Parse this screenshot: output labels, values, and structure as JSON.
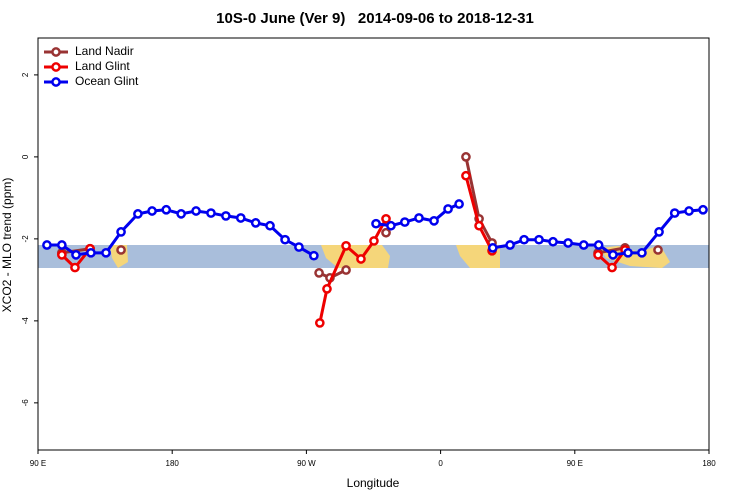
{
  "chart_data": {
    "type": "line",
    "title": "10S-0 June (Ver 9)   2014-09-06 to 2018-12-31",
    "xlabel": "Longitude",
    "ylabel": "XCO2 - MLO trend (ppm)",
    "xlim": [
      90,
      540
    ],
    "ylim": [
      -7.15,
      2.9
    ],
    "xticks": [
      {
        "value": 90,
        "label": "90 E"
      },
      180,
      {
        "value": 270,
        "label": "90 W"
      },
      {
        "value": 360,
        "label": "0"
      },
      {
        "value": 450,
        "label": "90 E"
      },
      {
        "value": 540,
        "label": "180"
      }
    ],
    "yticks": [
      2,
      0,
      -2,
      -4,
      -6
    ],
    "legend": "top-left",
    "series": [
      {
        "name": "Land Nadir",
        "color": "#993333",
        "x": [
          106,
          124.9,
          null,
          145.7,
          null,
          278.5,
          285.8,
          296.6,
          null,
          323.4,
          null,
          377,
          385.8,
          394.5,
          null,
          465.6,
          483.7,
          null,
          505.8
        ],
        "values": [
          -2.34,
          -2.24,
          null,
          -2.27,
          null,
          -2.83,
          -2.95,
          -2.76,
          null,
          -1.85,
          null,
          0,
          -1.51,
          -2.1,
          null,
          -2.34,
          -2.22,
          null,
          -2.27
        ]
      },
      {
        "name": "Land Glint",
        "color": "#ee0000",
        "x": [
          106,
          114.8,
          124.9,
          null,
          279,
          283.8,
          296.6,
          306.6,
          315.3,
          323.4,
          null,
          377,
          385.8,
          394.5,
          null,
          465.6,
          475,
          483.7
        ],
        "values": [
          -2.39,
          -2.7,
          -2.24,
          null,
          -4.05,
          -3.22,
          -2.17,
          -2.49,
          -2.05,
          -1.51,
          null,
          -0.46,
          -1.68,
          -2.29,
          null,
          -2.39,
          -2.7,
          -2.27
        ]
      },
      {
        "name": "Ocean Glint",
        "color": "#0000ee",
        "x": [
          96,
          106,
          115.5,
          125.5,
          135.6,
          145.7,
          157,
          166.5,
          176,
          186,
          196,
          206,
          216,
          226,
          236,
          245.6,
          255.7,
          265,
          275,
          null,
          316.7,
          326.7,
          336,
          345.5,
          355.6,
          365,
          372.4,
          null,
          395,
          406.6,
          416,
          426,
          435.4,
          445.5,
          456,
          466,
          475.6,
          485.7,
          495,
          506.5,
          517,
          526.6,
          536
        ],
        "values": [
          -2.15,
          -2.15,
          -2.39,
          -2.34,
          -2.34,
          -1.83,
          -1.39,
          -1.32,
          -1.29,
          -1.39,
          -1.32,
          -1.37,
          -1.44,
          -1.49,
          -1.61,
          -1.68,
          -2.02,
          -2.2,
          -2.41,
          null,
          -1.63,
          -1.68,
          -1.59,
          -1.49,
          -1.56,
          -1.27,
          -1.15,
          null,
          -2.22,
          -2.15,
          -2.02,
          -2.02,
          -2.07,
          -2.1,
          -2.15,
          -2.15,
          -2.39,
          -2.34,
          -2.34,
          -1.83,
          -1.37,
          -1.32,
          -1.29
        ]
      }
    ]
  }
}
